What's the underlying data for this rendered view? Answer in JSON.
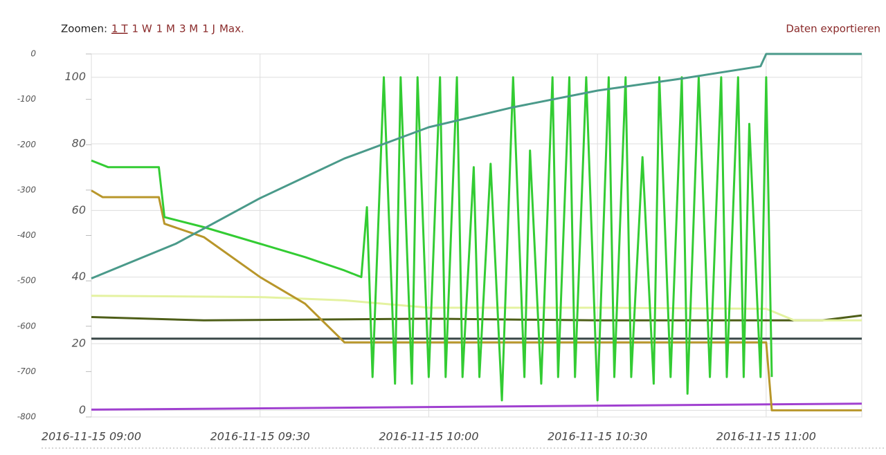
{
  "toolbar": {
    "label": "Zoomen:",
    "options": [
      "1 T",
      "1 W",
      "1 M",
      "3 M",
      "1 J",
      "Max."
    ],
    "export": "Daten exportieren"
  },
  "chart_data": {
    "type": "line",
    "xlim": [
      "2016-11-15 09:00",
      "2016-11-15 11:17"
    ],
    "xticks": [
      "2016-11-15 09:00",
      "2016-11-15 09:30",
      "2016-11-15 10:00",
      "2016-11-15 10:30",
      "2016-11-15 11:00"
    ],
    "ylim": [
      -800,
      0
    ],
    "yticks": [
      0,
      -100,
      -200,
      -300,
      -400,
      -500,
      -600,
      -700,
      -800
    ],
    "y2lim": [
      -2,
      107
    ],
    "y2ticks": [
      0,
      20,
      40,
      60,
      80,
      100
    ],
    "grid": true,
    "series": [
      {
        "color": "#a040d0",
        "axis": "y2",
        "x": [
          "2016-11-15 09:00",
          "2016-11-15 11:17"
        ],
        "values": [
          0.2,
          2
        ]
      },
      {
        "color": "#3a4848",
        "axis": "y2",
        "x": [
          "2016-11-15 09:00",
          "2016-11-15 11:17"
        ],
        "values": [
          21.5,
          21.5
        ]
      },
      {
        "color": "#4e5e18",
        "axis": "y2",
        "x": [
          "2016-11-15 09:00",
          "2016-11-15 09:20",
          "2016-11-15 10:00",
          "2016-11-15 10:30",
          "2016-11-15 11:00",
          "2016-11-15 11:10",
          "2016-11-15 11:17"
        ],
        "values": [
          28,
          27,
          27.5,
          27,
          27,
          27,
          28.5
        ]
      },
      {
        "color": "#e4f2a0",
        "axis": "y2",
        "x": [
          "2016-11-15 09:00",
          "2016-11-15 09:30",
          "2016-11-15 09:45",
          "2016-11-15 10:00",
          "2016-11-15 10:30",
          "2016-11-15 11:00",
          "2016-11-15 11:05",
          "2016-11-15 11:17"
        ],
        "values": [
          34.4,
          34,
          33,
          30.8,
          30.8,
          30.5,
          27,
          27
        ]
      },
      {
        "color": "#b8962a",
        "axis": "y2",
        "x": [
          "2016-11-15 09:00",
          "2016-11-15 09:02",
          "2016-11-15 09:12",
          "2016-11-15 09:13",
          "2016-11-15 09:20",
          "2016-11-15 09:30",
          "2016-11-15 09:38",
          "2016-11-15 09:45",
          "2016-11-15 11:00",
          "2016-11-15 11:01",
          "2016-11-15 11:17"
        ],
        "values": [
          66,
          64,
          64,
          56,
          52,
          40,
          32,
          20.4,
          20.4,
          0,
          0
        ]
      },
      {
        "color": "#33cc33",
        "axis": "y2",
        "x": [
          "2016-11-15 09:00",
          "2016-11-15 09:03",
          "2016-11-15 09:12",
          "2016-11-15 09:13",
          "2016-11-15 09:20",
          "2016-11-15 09:30",
          "2016-11-15 09:38",
          "2016-11-15 09:45",
          "2016-11-15 09:48",
          "2016-11-15 09:49",
          "2016-11-15 09:50",
          "2016-11-15 09:52",
          "2016-11-15 09:54",
          "2016-11-15 09:55",
          "2016-11-15 09:57",
          "2016-11-15 09:58",
          "2016-11-15 10:00",
          "2016-11-15 10:02",
          "2016-11-15 10:03",
          "2016-11-15 10:05",
          "2016-11-15 10:06",
          "2016-11-15 10:08",
          "2016-11-15 10:09",
          "2016-11-15 10:11",
          "2016-11-15 10:13",
          "2016-11-15 10:15",
          "2016-11-15 10:17",
          "2016-11-15 10:18",
          "2016-11-15 10:20",
          "2016-11-15 10:22",
          "2016-11-15 10:23",
          "2016-11-15 10:25",
          "2016-11-15 10:26",
          "2016-11-15 10:28",
          "2016-11-15 10:30",
          "2016-11-15 10:32",
          "2016-11-15 10:33",
          "2016-11-15 10:35",
          "2016-11-15 10:36",
          "2016-11-15 10:38",
          "2016-11-15 10:40",
          "2016-11-15 10:41",
          "2016-11-15 10:43",
          "2016-11-15 10:45",
          "2016-11-15 10:46",
          "2016-11-15 10:48",
          "2016-11-15 10:50",
          "2016-11-15 10:52",
          "2016-11-15 10:53",
          "2016-11-15 10:55",
          "2016-11-15 10:56",
          "2016-11-15 10:57",
          "2016-11-15 10:59",
          "2016-11-15 11:00",
          "2016-11-15 11:01"
        ],
        "values": [
          75,
          73,
          73,
          58,
          55,
          50,
          46,
          42,
          40,
          61,
          10,
          100,
          8,
          100,
          8,
          100,
          10,
          100,
          10,
          100,
          10,
          73,
          10,
          74,
          3,
          100,
          10,
          78,
          8,
          100,
          10,
          100,
          10,
          100,
          3,
          100,
          10,
          100,
          10,
          76,
          8,
          100,
          10,
          100,
          5,
          100,
          10,
          100,
          10,
          100,
          10,
          86,
          10,
          100,
          10
        ]
      },
      {
        "color": "#4a9a8a",
        "axis": "y2",
        "x": [
          "2016-11-15 09:00",
          "2016-11-15 09:15",
          "2016-11-15 09:30",
          "2016-11-15 09:45",
          "2016-11-15 10:00",
          "2016-11-15 10:15",
          "2016-11-15 10:30",
          "2016-11-15 10:45",
          "2016-11-15 10:59",
          "2016-11-15 11:00",
          "2016-11-15 11:17"
        ],
        "values": [
          39.6,
          50,
          63.7,
          75.6,
          85,
          91,
          96,
          99.6,
          103.3,
          107,
          107
        ]
      }
    ]
  }
}
